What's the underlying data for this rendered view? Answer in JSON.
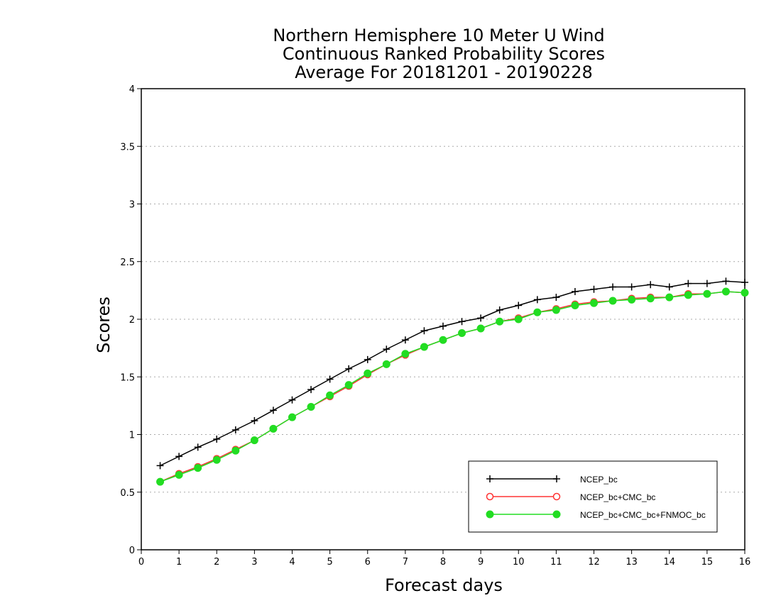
{
  "title_lines": [
    "Northern Hemisphere 10 Meter U Wind",
    "Continuous Ranked Probability Scores",
    "Average For 20181201 - 20190228"
  ],
  "chart_data": {
    "type": "line",
    "title": "Northern Hemisphere 10 Meter U Wind Continuous Ranked Probability Scores Average For 20181201 - 20190228",
    "xlabel": "Forecast days",
    "ylabel": "Scores",
    "xlim": [
      0,
      16
    ],
    "ylim": [
      0,
      4
    ],
    "x_ticks": [
      "0",
      "1",
      "2",
      "3",
      "4",
      "5",
      "6",
      "7",
      "8",
      "9",
      "10",
      "11",
      "12",
      "13",
      "14",
      "15",
      "16"
    ],
    "y_ticks": [
      "0",
      "0.5",
      "1",
      "1.5",
      "2",
      "2.5",
      "3",
      "3.5",
      "4"
    ],
    "grid": "horizontal dotted",
    "legend_position": "lower-right",
    "x": [
      0.5,
      1,
      1.5,
      2,
      2.5,
      3,
      3.5,
      4,
      4.5,
      5,
      5.5,
      6,
      6.5,
      7,
      7.5,
      8,
      8.5,
      9,
      9.5,
      10,
      10.5,
      11,
      11.5,
      12,
      12.5,
      13,
      13.5,
      14,
      14.5,
      15,
      15.5,
      16
    ],
    "series": [
      {
        "name": "NCEP_bc",
        "color": "#000000",
        "marker": "plus",
        "values": [
          0.73,
          0.81,
          0.89,
          0.96,
          1.04,
          1.12,
          1.21,
          1.3,
          1.39,
          1.48,
          1.57,
          1.65,
          1.74,
          1.82,
          1.9,
          1.94,
          1.98,
          2.01,
          2.08,
          2.12,
          2.17,
          2.19,
          2.24,
          2.26,
          2.28,
          2.28,
          2.3,
          2.28,
          2.31,
          2.31,
          2.33,
          2.32
        ]
      },
      {
        "name": "NCEP_bc+CMC_bc",
        "color": "#ff3333",
        "marker": "open-circle",
        "values": [
          0.59,
          0.66,
          0.72,
          0.79,
          0.87,
          0.95,
          1.05,
          1.15,
          1.24,
          1.33,
          1.42,
          1.52,
          1.61,
          1.69,
          1.76,
          1.82,
          1.88,
          1.92,
          1.98,
          2.01,
          2.06,
          2.09,
          2.13,
          2.15,
          2.16,
          2.18,
          2.19,
          2.19,
          2.22,
          2.22,
          2.24,
          2.23
        ]
      },
      {
        "name": "NCEP_bc+CMC_bc+FNMOC_bc",
        "color": "#22dd22",
        "marker": "filled-circle",
        "values": [
          0.59,
          0.65,
          0.71,
          0.78,
          0.86,
          0.95,
          1.05,
          1.15,
          1.24,
          1.34,
          1.43,
          1.53,
          1.61,
          1.7,
          1.76,
          1.82,
          1.88,
          1.92,
          1.98,
          2.0,
          2.06,
          2.08,
          2.12,
          2.14,
          2.16,
          2.17,
          2.18,
          2.19,
          2.21,
          2.22,
          2.24,
          2.23
        ]
      }
    ]
  }
}
